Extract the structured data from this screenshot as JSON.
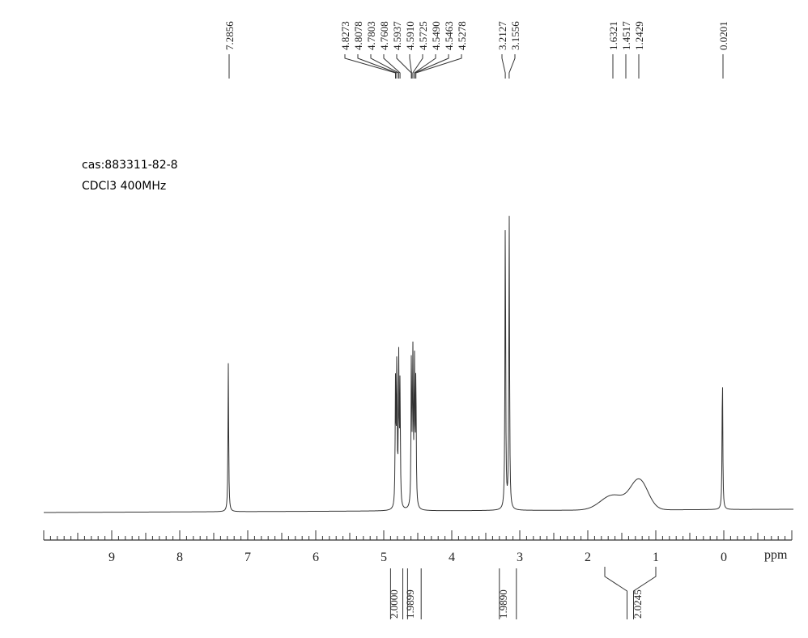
{
  "chart_data": {
    "type": "line",
    "title": "",
    "annotations": [
      "cas:883311-82-8",
      "CDCl3 400MHz"
    ],
    "xlabel": "ppm",
    "xlim": [
      10,
      -1
    ],
    "x_reversed": true,
    "x_ticks": [
      "9",
      "8",
      "7",
      "6",
      "5",
      "4",
      "3",
      "2",
      "1",
      "0"
    ],
    "peak_labels": [
      "7.2856",
      "4.8273",
      "4.8078",
      "4.7803",
      "4.7608",
      "4.5937",
      "4.5910",
      "4.5725",
      "4.5490",
      "4.5463",
      "4.5278",
      "3.2127",
      "3.1556",
      "1.6321",
      "1.4517",
      "1.2429",
      "0.0201"
    ],
    "peaks": [
      {
        "ppm": 7.2856,
        "height": 0.5
      },
      {
        "ppm": 4.8273,
        "height": 0.41
      },
      {
        "ppm": 4.8078,
        "height": 0.49
      },
      {
        "ppm": 4.7803,
        "height": 0.49
      },
      {
        "ppm": 4.7608,
        "height": 0.41
      },
      {
        "ppm": 4.5937,
        "height": 0.51
      },
      {
        "ppm": 4.5725,
        "height": 0.51
      },
      {
        "ppm": 4.549,
        "height": 0.49
      },
      {
        "ppm": 4.5278,
        "height": 0.45
      },
      {
        "ppm": 3.2127,
        "height": 1.0
      },
      {
        "ppm": 3.1556,
        "height": 1.0
      },
      {
        "ppm": 0.0201,
        "height": 0.47
      }
    ],
    "broad_peaks": [
      {
        "ppm": 1.6321,
        "height": 0.05,
        "width": 0.25
      },
      {
        "ppm": 1.2429,
        "height": 0.1,
        "width": 0.18
      }
    ],
    "integrals": [
      {
        "label": "2.0000",
        "from": 4.9,
        "to": 4.72
      },
      {
        "label": "1.9899",
        "from": 4.65,
        "to": 4.45
      },
      {
        "label": "1.9890",
        "from": 3.3,
        "to": 3.05
      },
      {
        "label": "2.0245",
        "from": 1.75,
        "to": 1.0
      }
    ]
  }
}
